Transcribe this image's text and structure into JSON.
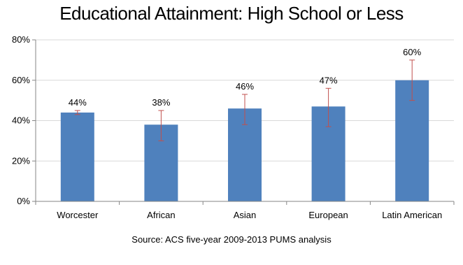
{
  "chart_data": {
    "type": "bar",
    "title": "Educational Attainment: High School or Less",
    "categories": [
      "Worcester",
      "African",
      "Asian",
      "European",
      "Latin American"
    ],
    "values": [
      44,
      38,
      46,
      47,
      60
    ],
    "data_labels": [
      "44%",
      "38%",
      "46%",
      "47%",
      "60%"
    ],
    "error_bars": [
      {
        "low": 43,
        "high": 45
      },
      {
        "low": 30,
        "high": 45
      },
      {
        "low": 38,
        "high": 53
      },
      {
        "low": 37,
        "high": 56
      },
      {
        "low": 50,
        "high": 70
      }
    ],
    "ylim": [
      0,
      80
    ],
    "yticks": [
      0,
      20,
      40,
      60,
      80
    ],
    "ytick_labels": [
      "0%",
      "20%",
      "40%",
      "60%",
      "80%"
    ],
    "grid": true,
    "legend": "none",
    "colors": {
      "bar": "#4f81bd",
      "error_bar": "#c0504d",
      "grid": "#d9d9d9",
      "axis": "#868686"
    },
    "source": "Source: ACS five-year 2009-2013 PUMS analysis"
  }
}
